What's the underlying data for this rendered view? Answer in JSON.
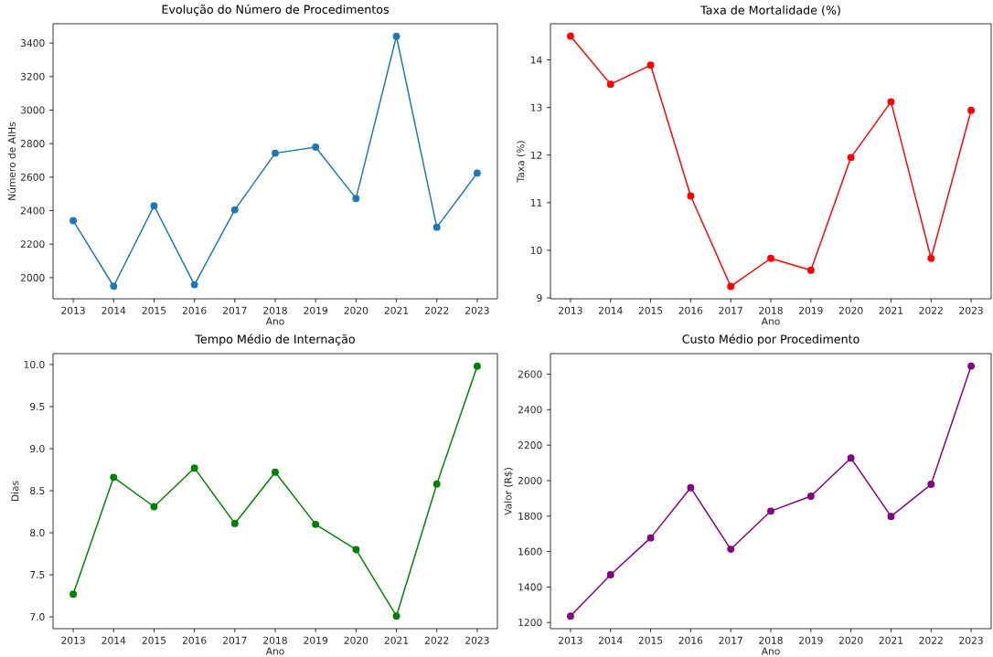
{
  "chart_data": [
    {
      "type": "line",
      "title": "Evolução do Número de Procedimentos",
      "xlabel": "Ano",
      "ylabel": "Número de AIHs",
      "color": "#1f77b4",
      "marker": "circle",
      "x": [
        2013,
        2014,
        2015,
        2016,
        2017,
        2018,
        2019,
        2020,
        2021,
        2022,
        2023
      ],
      "values": [
        2340,
        1949,
        2429,
        1958,
        2405,
        2743,
        2779,
        2473,
        3440,
        2301,
        2624
      ],
      "xlim": [
        2012.5,
        2023.5
      ],
      "xticks": [
        2013,
        2014,
        2015,
        2016,
        2017,
        2018,
        2019,
        2020,
        2021,
        2022,
        2023
      ],
      "ylim": [
        1874,
        3515
      ],
      "yticks": [
        2000,
        2200,
        2400,
        2600,
        2800,
        3000,
        3200,
        3400
      ]
    },
    {
      "type": "line",
      "title": "Taxa de Mortalidade (%)",
      "xlabel": "Ano",
      "ylabel": "Taxa (%)",
      "color": "#ff0000",
      "marker": "circle",
      "x": [
        2013,
        2014,
        2015,
        2016,
        2017,
        2018,
        2019,
        2020,
        2021,
        2022,
        2023
      ],
      "values": [
        14.5,
        13.49,
        13.89,
        11.14,
        9.24,
        9.83,
        9.58,
        11.95,
        13.12,
        9.83,
        12.94
      ],
      "xlim": [
        2012.5,
        2023.5
      ],
      "xticks": [
        2013,
        2014,
        2015,
        2016,
        2017,
        2018,
        2019,
        2020,
        2021,
        2022,
        2023
      ],
      "ylim": [
        8.98,
        14.76
      ],
      "yticks": [
        9,
        10,
        11,
        12,
        13,
        14
      ]
    },
    {
      "type": "line",
      "title": "Tempo Médio de Internação",
      "xlabel": "Ano",
      "ylabel": "Dias",
      "color": "#008000",
      "marker": "circle",
      "x": [
        2013,
        2014,
        2015,
        2016,
        2017,
        2018,
        2019,
        2020,
        2021,
        2022,
        2023
      ],
      "values": [
        7.27,
        8.66,
        8.31,
        8.77,
        8.11,
        8.72,
        8.1,
        7.8,
        7.01,
        8.58,
        9.98
      ],
      "xlim": [
        2012.5,
        2023.5
      ],
      "xticks": [
        2013,
        2014,
        2015,
        2016,
        2017,
        2018,
        2019,
        2020,
        2021,
        2022,
        2023
      ],
      "ylim": [
        6.86,
        10.13
      ],
      "yticks": [
        {
          "value": 7,
          "label": "7.0"
        },
        {
          "value": 7.5,
          "label": "7.5"
        },
        {
          "value": 8,
          "label": "8.0"
        },
        {
          "value": 8.5,
          "label": "8.5"
        },
        {
          "value": 9,
          "label": "9.0"
        },
        {
          "value": 9.5,
          "label": "9.5"
        },
        {
          "value": 10,
          "label": "10.0"
        }
      ]
    },
    {
      "type": "line",
      "title": "Custo Médio por Procedimento",
      "xlabel": "Ano",
      "ylabel": "Valor (R$)",
      "color": "#800080",
      "marker": "circle",
      "x": [
        2013,
        2014,
        2015,
        2016,
        2017,
        2018,
        2019,
        2020,
        2021,
        2022,
        2023
      ],
      "values": [
        1236,
        1469,
        1677,
        1960,
        1613,
        1828,
        1912,
        2127,
        1798,
        1979,
        2646
      ],
      "xlim": [
        2012.5,
        2023.5
      ],
      "xticks": [
        2013,
        2014,
        2015,
        2016,
        2017,
        2018,
        2019,
        2020,
        2021,
        2022,
        2023
      ],
      "ylim": [
        1165,
        2716
      ],
      "yticks": [
        1200,
        1400,
        1600,
        1800,
        2000,
        2200,
        2400,
        2600
      ]
    }
  ]
}
